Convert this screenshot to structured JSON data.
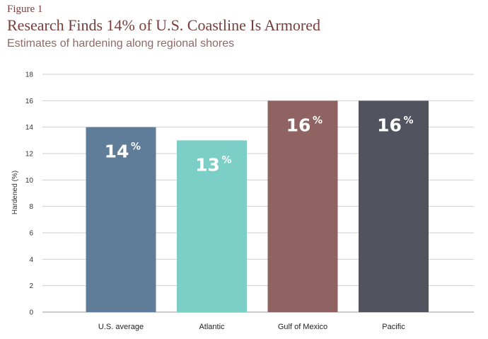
{
  "figure_label": "Figure 1",
  "chart_data": {
    "type": "bar",
    "title": "Research Finds 14% of U.S. Coastline Is Armored",
    "subtitle": "Estimates of hardening along regional shores",
    "xlabel": "",
    "ylabel": "Hardened (%)",
    "ylim": [
      0,
      18
    ],
    "yticks": [
      0,
      2,
      4,
      6,
      8,
      10,
      12,
      14,
      16,
      18
    ],
    "grid": true,
    "categories": [
      "U.S. average",
      "Atlantic",
      "Gulf of Mexico",
      "Pacific"
    ],
    "values": [
      14,
      13,
      16,
      16
    ],
    "value_labels": [
      "14",
      "13",
      "16",
      "16"
    ],
    "value_suffix": "%",
    "colors": [
      "#5f7d98",
      "#7ccfc6",
      "#8e6362",
      "#52535f"
    ]
  }
}
